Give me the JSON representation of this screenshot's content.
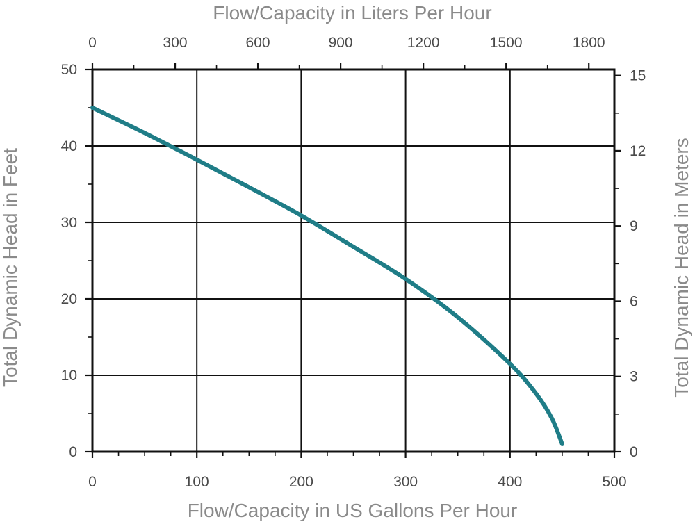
{
  "colors": {
    "curve": "#1f7d87",
    "axis_title": "#8a8a8a",
    "tick_text": "#4a4a4a",
    "grid": "#111111"
  },
  "chart_data": {
    "type": "line",
    "title": "",
    "xlabel": "Flow/Capacity in US Gallons Per Hour",
    "ylabel": "Total Dynamic Head in Feet",
    "x2label": "Flow/Capacity in Liters Per Hour",
    "y2label": "Total Dynamic Head in Meters",
    "xlim": [
      0,
      500
    ],
    "ylim": [
      0,
      50
    ],
    "x2lim": [
      0,
      1892.7
    ],
    "y2lim": [
      0,
      15.24
    ],
    "x_ticks": [
      0,
      100,
      200,
      300,
      400,
      500
    ],
    "y_ticks": [
      0,
      10,
      20,
      30,
      40,
      50
    ],
    "x2_ticks": [
      0,
      300,
      600,
      900,
      1200,
      1500,
      1800
    ],
    "y2_ticks": [
      0,
      3,
      6,
      9,
      12,
      15
    ],
    "grid": true,
    "legend": "none",
    "series": [
      {
        "x": [
          0,
          50,
          100,
          150,
          200,
          250,
          300,
          350,
          400,
          425,
          440,
          450
        ],
        "y": [
          45,
          41.7,
          38.2,
          34.6,
          30.9,
          26.8,
          22.6,
          17.6,
          11.5,
          7.6,
          4.4,
          1.0
        ]
      }
    ]
  }
}
